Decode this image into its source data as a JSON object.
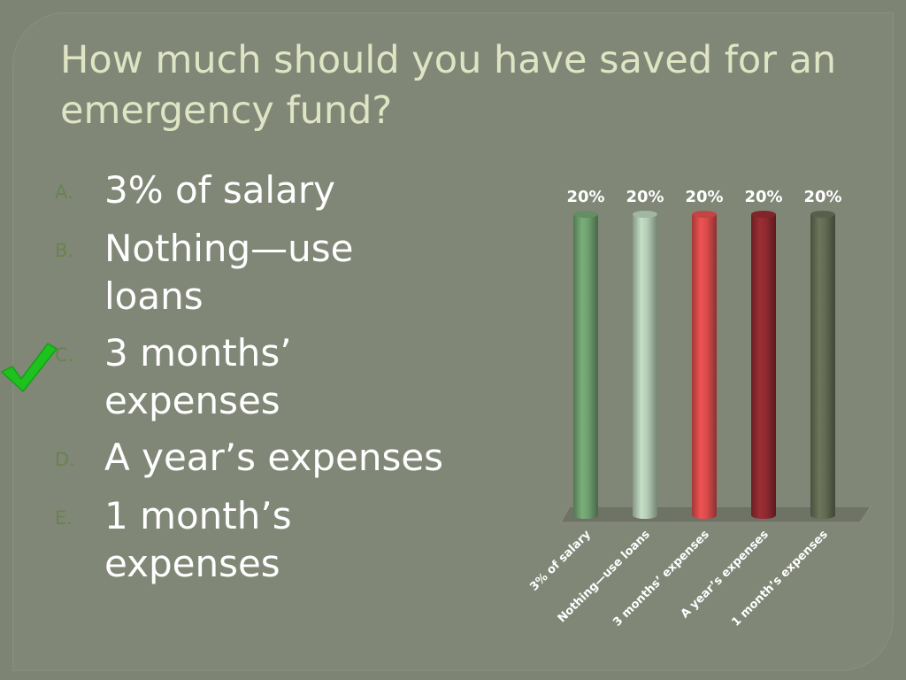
{
  "title": "How much should you have saved for an emergency fund?",
  "answers": [
    {
      "marker": "A.",
      "text": "3% of salary"
    },
    {
      "marker": "B.",
      "text": "Nothing—use loans"
    },
    {
      "marker": "C.",
      "text": "3 months’ expenses"
    },
    {
      "marker": "D.",
      "text": "A year’s expenses"
    },
    {
      "marker": "E.",
      "text": "1 month’s expenses"
    }
  ],
  "correct_answer_icon": "check-mark-icon",
  "colors": {
    "background": "#7e8474",
    "title": "#dfe4c4",
    "answer_text": "#ffffff",
    "marker": "#69824f",
    "check": "#1ec21e"
  },
  "chart_data": {
    "type": "bar",
    "categories": [
      "3% of salary",
      "Nothing—use loans",
      "3 months’ expenses",
      "A year’s expenses",
      "1 month’s expenses"
    ],
    "values": [
      20,
      20,
      20,
      20,
      20
    ],
    "value_labels": [
      "20%",
      "20%",
      "20%",
      "20%",
      "20%"
    ],
    "bar_colors": [
      "#6f9e6f",
      "#b3cbb4",
      "#d94b4b",
      "#8e2a2f",
      "#636a52"
    ],
    "ylim": [
      0,
      20
    ],
    "title": "",
    "xlabel": "",
    "ylabel": "",
    "grid": false,
    "legend": "none",
    "style": "3d-cylinder"
  }
}
